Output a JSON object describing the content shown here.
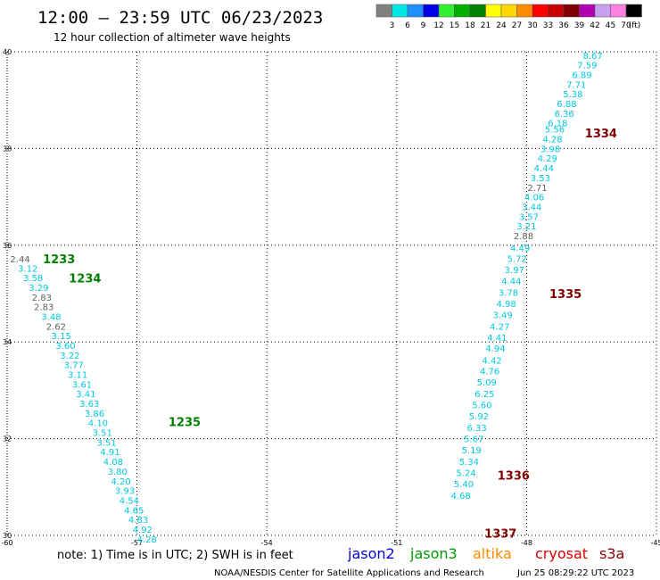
{
  "header": {
    "title": "12:00 — 23:59 UTC 06/23/2023",
    "subtitle": "12 hour collection of altimeter wave heights"
  },
  "color_scale": {
    "labels": [
      "3",
      "6",
      "9",
      "12",
      "15",
      "18",
      "21",
      "24",
      "27",
      "30",
      "33",
      "36",
      "39",
      "42",
      "45",
      "70"
    ],
    "unit": "(ft)",
    "colors": [
      "#808080",
      "#00e5e5",
      "#1e90ff",
      "#0000e6",
      "#33ee33",
      "#00b000",
      "#008000",
      "#ffff00",
      "#ffd700",
      "#ff8c00",
      "#ff0000",
      "#c80000",
      "#800000",
      "#b000b0",
      "#c8a0f0",
      "#ff80e0",
      "#000000"
    ]
  },
  "footer": {
    "note": "note:  1) Time is in UTC;  2) SWH is in feet",
    "credit": "NOAA/NESDIS Center for Satellite Applications and Research",
    "timestamp": "Jun 25 08:29:22 UTC 2023"
  },
  "missions": [
    {
      "name": "jason2",
      "color": "#0000dd"
    },
    {
      "name": "jason3",
      "color": "#009900"
    },
    {
      "name": "altika",
      "color": "#ff8c00"
    },
    {
      "name": "cryosat",
      "color": "#dd0000"
    },
    {
      "name": "s3a",
      "color": "#880000"
    }
  ],
  "chart_data": {
    "type": "scatter",
    "xlim": [
      -60,
      -45
    ],
    "ylim": [
      30,
      40
    ],
    "x_ticks": [
      -60,
      -57,
      -54,
      -51,
      -48,
      -45
    ],
    "y_ticks": [
      30,
      32,
      34,
      36,
      38,
      40
    ],
    "grid": "dotted",
    "series": [
      {
        "name": "jason3",
        "color": "#008000",
        "points": [
          {
            "x": -59.7,
            "y": 35.72,
            "v": "2.44"
          },
          {
            "x": -59.52,
            "y": 35.53,
            "v": "3.12"
          },
          {
            "x": -59.4,
            "y": 35.33,
            "v": "3.58"
          },
          {
            "x": -59.27,
            "y": 35.13,
            "v": "3.29"
          },
          {
            "x": -59.2,
            "y": 34.93,
            "v": "2.83"
          },
          {
            "x": -59.15,
            "y": 34.73,
            "v": "2.83"
          },
          {
            "x": -58.98,
            "y": 34.53,
            "v": "3.48"
          },
          {
            "x": -58.87,
            "y": 34.33,
            "v": "2.62"
          },
          {
            "x": -58.75,
            "y": 34.13,
            "v": "3.15"
          },
          {
            "x": -58.65,
            "y": 33.93,
            "v": "3.60"
          },
          {
            "x": -58.55,
            "y": 33.73,
            "v": "3.22"
          },
          {
            "x": -58.46,
            "y": 33.53,
            "v": "3.77"
          },
          {
            "x": -58.37,
            "y": 33.33,
            "v": "3.11"
          },
          {
            "x": -58.27,
            "y": 33.13,
            "v": "3.61"
          },
          {
            "x": -58.18,
            "y": 32.93,
            "v": "3.41"
          },
          {
            "x": -58.1,
            "y": 32.73,
            "v": "3.63"
          },
          {
            "x": -57.98,
            "y": 32.53,
            "v": "3.86"
          },
          {
            "x": -57.9,
            "y": 32.33,
            "v": "4.10"
          },
          {
            "x": -57.8,
            "y": 32.13,
            "v": "3.51"
          },
          {
            "x": -57.7,
            "y": 31.93,
            "v": "3.51"
          },
          {
            "x": -57.62,
            "y": 31.73,
            "v": "4.91"
          },
          {
            "x": -57.55,
            "y": 31.53,
            "v": "4.08"
          },
          {
            "x": -57.45,
            "y": 31.33,
            "v": "3.80"
          },
          {
            "x": -57.37,
            "y": 31.13,
            "v": "4.20"
          },
          {
            "x": -57.28,
            "y": 30.93,
            "v": "3.93"
          },
          {
            "x": -57.18,
            "y": 30.73,
            "v": "4.54"
          },
          {
            "x": -57.07,
            "y": 30.53,
            "v": "4.65"
          },
          {
            "x": -56.97,
            "y": 30.33,
            "v": "4.83"
          },
          {
            "x": -56.87,
            "y": 30.13,
            "v": "4.92"
          },
          {
            "x": -56.77,
            "y": 29.93,
            "v": "4.28"
          }
        ],
        "times": [
          {
            "label": "1233",
            "x": -58.8,
            "y": 35.72
          },
          {
            "label": "1234",
            "x": -58.2,
            "y": 35.32
          },
          {
            "label": "1235",
            "x": -55.9,
            "y": 32.35
          }
        ]
      },
      {
        "name": "s3a",
        "color": "#800000",
        "points": [
          {
            "x": -46.47,
            "y": 39.93,
            "v": "8.67"
          },
          {
            "x": -46.6,
            "y": 39.73,
            "v": "7.59"
          },
          {
            "x": -46.72,
            "y": 39.53,
            "v": "6.89"
          },
          {
            "x": -46.85,
            "y": 39.33,
            "v": "7.71"
          },
          {
            "x": -46.93,
            "y": 39.13,
            "v": "5.38"
          },
          {
            "x": -47.07,
            "y": 38.93,
            "v": "6.88"
          },
          {
            "x": -47.13,
            "y": 38.73,
            "v": "6.36"
          },
          {
            "x": -47.28,
            "y": 38.53,
            "v": "6.18"
          },
          {
            "x": -47.35,
            "y": 38.4,
            "v": "5.56"
          },
          {
            "x": -47.4,
            "y": 38.2,
            "v": "4.28"
          },
          {
            "x": -47.45,
            "y": 38.0,
            "v": "3.98"
          },
          {
            "x": -47.52,
            "y": 37.8,
            "v": "4.29"
          },
          {
            "x": -47.6,
            "y": 37.6,
            "v": "4.44"
          },
          {
            "x": -47.68,
            "y": 37.4,
            "v": "3.53"
          },
          {
            "x": -47.75,
            "y": 37.2,
            "v": "2.71"
          },
          {
            "x": -47.82,
            "y": 37.0,
            "v": "4.06"
          },
          {
            "x": -47.88,
            "y": 36.8,
            "v": "3.44"
          },
          {
            "x": -47.95,
            "y": 36.6,
            "v": "3.57"
          },
          {
            "x": -48.0,
            "y": 36.4,
            "v": "3.21"
          },
          {
            "x": -48.07,
            "y": 36.2,
            "v": "2.88"
          },
          {
            "x": -48.15,
            "y": 35.95,
            "v": "4.49"
          },
          {
            "x": -48.22,
            "y": 35.73,
            "v": "5.72"
          },
          {
            "x": -48.28,
            "y": 35.5,
            "v": "3.97"
          },
          {
            "x": -48.35,
            "y": 35.27,
            "v": "4.44"
          },
          {
            "x": -48.42,
            "y": 35.03,
            "v": "3.78"
          },
          {
            "x": -48.47,
            "y": 34.8,
            "v": "4.98"
          },
          {
            "x": -48.55,
            "y": 34.57,
            "v": "3.49"
          },
          {
            "x": -48.62,
            "y": 34.33,
            "v": "4.27"
          },
          {
            "x": -48.68,
            "y": 34.1,
            "v": "4.41"
          },
          {
            "x": -48.72,
            "y": 33.87,
            "v": "4.94"
          },
          {
            "x": -48.8,
            "y": 33.63,
            "v": "4.42"
          },
          {
            "x": -48.85,
            "y": 33.4,
            "v": "4.76"
          },
          {
            "x": -48.92,
            "y": 33.17,
            "v": "5.09"
          },
          {
            "x": -48.97,
            "y": 32.93,
            "v": "6.25"
          },
          {
            "x": -49.03,
            "y": 32.7,
            "v": "5.60"
          },
          {
            "x": -49.1,
            "y": 32.47,
            "v": "5.92"
          },
          {
            "x": -49.15,
            "y": 32.23,
            "v": "6.33"
          },
          {
            "x": -49.22,
            "y": 32.0,
            "v": "5.67"
          },
          {
            "x": -49.27,
            "y": 31.77,
            "v": "5.19"
          },
          {
            "x": -49.33,
            "y": 31.53,
            "v": "5.34"
          },
          {
            "x": -49.4,
            "y": 31.3,
            "v": "5.24"
          },
          {
            "x": -49.45,
            "y": 31.07,
            "v": "5.40"
          },
          {
            "x": -49.52,
            "y": 30.83,
            "v": "4.68"
          }
        ],
        "times": [
          {
            "label": "1334",
            "x": -46.28,
            "y": 38.32
          },
          {
            "label": "1335",
            "x": -47.1,
            "y": 35.0
          },
          {
            "label": "1336",
            "x": -48.3,
            "y": 31.25
          },
          {
            "label": "1337",
            "x": -48.6,
            "y": 30.05
          }
        ]
      }
    ]
  }
}
